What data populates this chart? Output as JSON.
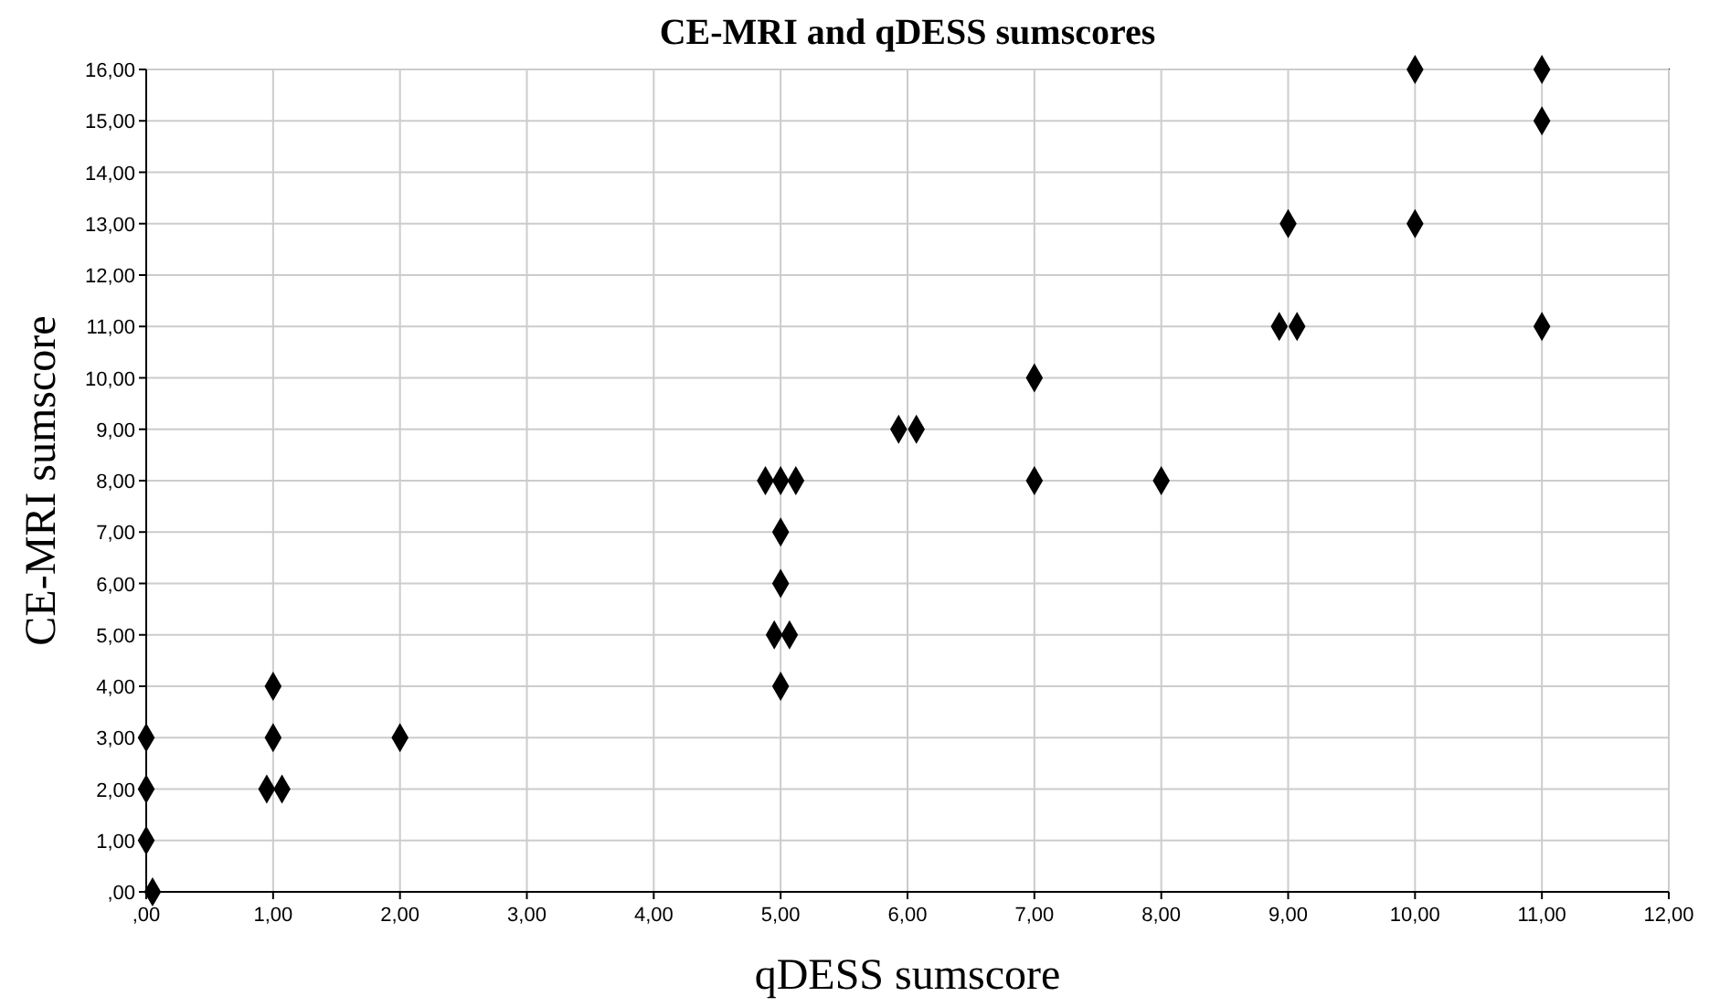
{
  "chart_data": {
    "type": "scatter",
    "title": "CE-MRI and qDESS sumscores",
    "xlabel": "qDESS sumscore",
    "ylabel": "CE-MRI sumscore",
    "x": [
      0.05,
      0,
      0,
      0,
      1,
      1,
      0.95,
      1.07,
      2,
      5,
      4.95,
      5.07,
      5,
      5,
      4.88,
      5,
      5.12,
      5.93,
      6.07,
      7,
      7,
      8,
      8.93,
      9.07,
      9,
      10,
      10,
      11,
      11,
      11
    ],
    "values": [
      0,
      1,
      2,
      3,
      4,
      3,
      2,
      2,
      3,
      4,
      5,
      5,
      6,
      7,
      8,
      8,
      8,
      9,
      9,
      10,
      8,
      8,
      11,
      11,
      13,
      13,
      16,
      16,
      15,
      11
    ],
    "color": "#000000",
    "marker": "diamond",
    "grid": true,
    "xlim": [
      0,
      12
    ],
    "ylim": [
      0,
      16
    ],
    "xticks": [
      {
        "value": 0,
        "label": ",00"
      },
      {
        "value": 1,
        "label": "1,00"
      },
      {
        "value": 2,
        "label": "2,00"
      },
      {
        "value": 3,
        "label": "3,00"
      },
      {
        "value": 4,
        "label": "4,00"
      },
      {
        "value": 5,
        "label": "5,00"
      },
      {
        "value": 6,
        "label": "6,00"
      },
      {
        "value": 7,
        "label": "7,00"
      },
      {
        "value": 8,
        "label": "8,00"
      },
      {
        "value": 9,
        "label": "9,00"
      },
      {
        "value": 10,
        "label": "10,00"
      },
      {
        "value": 11,
        "label": "11,00"
      },
      {
        "value": 12,
        "label": "12,00"
      }
    ],
    "yticks": [
      {
        "value": 0,
        "label": ",00"
      },
      {
        "value": 1,
        "label": "1,00"
      },
      {
        "value": 2,
        "label": "2,00"
      },
      {
        "value": 3,
        "label": "3,00"
      },
      {
        "value": 4,
        "label": "4,00"
      },
      {
        "value": 5,
        "label": "5,00"
      },
      {
        "value": 6,
        "label": "6,00"
      },
      {
        "value": 7,
        "label": "7,00"
      },
      {
        "value": 8,
        "label": "8,00"
      },
      {
        "value": 9,
        "label": "9,00"
      },
      {
        "value": 10,
        "label": "10,00"
      },
      {
        "value": 11,
        "label": "11,00"
      },
      {
        "value": 12,
        "label": "12,00"
      },
      {
        "value": 13,
        "label": "13,00"
      },
      {
        "value": 14,
        "label": "14,00"
      },
      {
        "value": 15,
        "label": "15,00"
      },
      {
        "value": 16,
        "label": "16,00"
      }
    ]
  }
}
